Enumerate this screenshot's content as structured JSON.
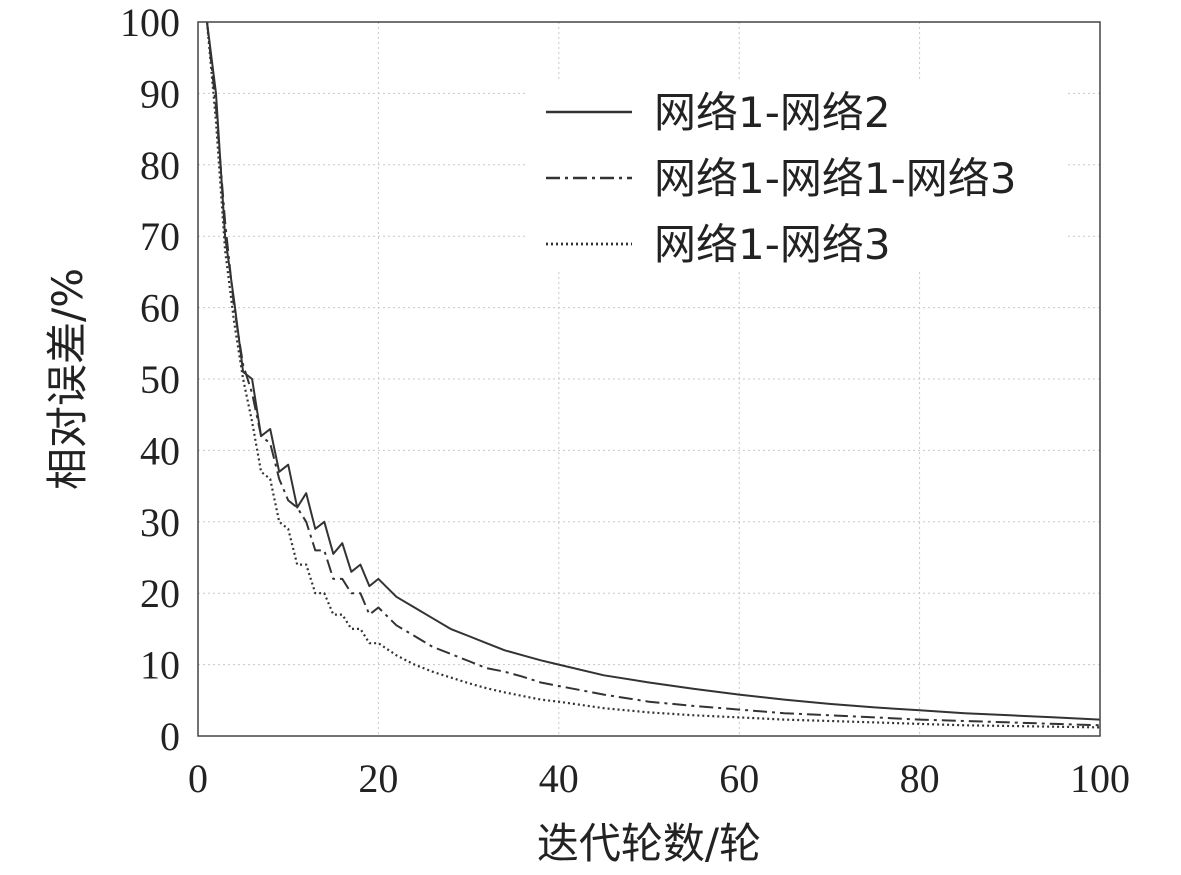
{
  "chart_data": {
    "type": "line",
    "xlabel": "迭代轮数/轮",
    "ylabel": "相对误差/%",
    "xlim": [
      0,
      100
    ],
    "ylim": [
      0,
      100
    ],
    "xticks": [
      "0",
      "20",
      "40",
      "60",
      "80",
      "100"
    ],
    "yticks": [
      "0",
      "10",
      "20",
      "30",
      "40",
      "50",
      "60",
      "70",
      "80",
      "90",
      "100"
    ],
    "grid": true,
    "legend_position": "top-right",
    "x": [
      1,
      2,
      3,
      4,
      5,
      6,
      7,
      8,
      9,
      10,
      11,
      12,
      13,
      14,
      15,
      16,
      17,
      18,
      19,
      20,
      22,
      24,
      26,
      28,
      30,
      32,
      34,
      36,
      38,
      40,
      45,
      50,
      55,
      60,
      65,
      70,
      75,
      80,
      85,
      90,
      95,
      100
    ],
    "series": [
      {
        "name": "网络1-网络2",
        "style": "solid",
        "color": "#333333",
        "values": [
          100,
          90,
          70,
          61,
          51,
          50,
          42,
          43,
          37,
          38,
          32,
          34,
          29,
          30,
          25.5,
          27,
          23,
          24,
          21,
          22,
          19.5,
          18,
          16.5,
          15,
          14,
          13,
          12,
          11.3,
          10.6,
          10,
          8.5,
          7.5,
          6.6,
          5.8,
          5.1,
          4.5,
          4,
          3.6,
          3.2,
          2.9,
          2.6,
          2.3
        ]
      },
      {
        "name": "网络1-网络1-网络3",
        "style": "dashdot",
        "color": "#333333",
        "values": [
          100,
          88,
          72,
          60,
          52,
          48,
          42,
          41,
          36,
          33,
          32,
          30,
          26,
          26,
          22,
          22,
          20,
          20,
          17,
          18,
          15.5,
          14,
          12.5,
          11.5,
          10.5,
          9.5,
          9,
          8.3,
          7.5,
          7,
          5.8,
          4.8,
          4.2,
          3.7,
          3.2,
          2.9,
          2.6,
          2.3,
          2.1,
          1.9,
          1.7,
          1.5
        ]
      },
      {
        "name": "网络1-网络3",
        "style": "dotted",
        "color": "#333333",
        "values": [
          100,
          86,
          68,
          58,
          50,
          44,
          37,
          36,
          30,
          29,
          24,
          24,
          20,
          20,
          17,
          17,
          15,
          15,
          13,
          13,
          11.3,
          10,
          9,
          8.2,
          7.4,
          6.7,
          6.1,
          5.6,
          5.1,
          4.8,
          3.9,
          3.3,
          2.9,
          2.6,
          2.3,
          2.1,
          1.9,
          1.7,
          1.5,
          1.4,
          1.3,
          1.2
        ]
      }
    ]
  }
}
